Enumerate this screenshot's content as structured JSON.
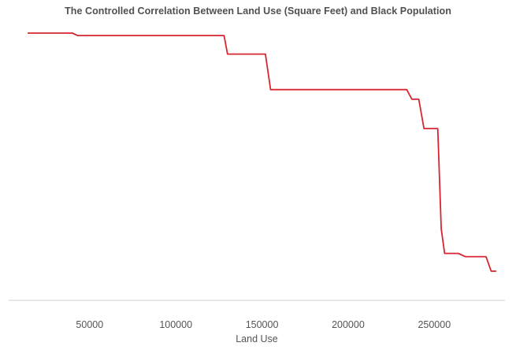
{
  "chart_data": {
    "type": "line",
    "title": "The Controlled Correlation Between Land Use (Square Feet) and Black Population",
    "xlabel": "Land Use",
    "ylabel": "",
    "x_ticks": [
      50000,
      100000,
      150000,
      200000,
      250000
    ],
    "xlim": [
      3000,
      291000
    ],
    "ylim": [
      0,
      1
    ],
    "y_axis_shown": false,
    "grid": false,
    "legend": "none",
    "line_color": "#d7262f",
    "axis_color": "#cccccc",
    "series": [
      {
        "x": [
          14000,
          40000,
          43000,
          128000,
          130000,
          152000,
          155000,
          234000,
          237000,
          241000,
          244000,
          252000,
          254000,
          256000,
          264000,
          268000,
          280000,
          283000,
          286000
        ],
        "y": [
          1.0,
          1.0,
          0.991,
          0.991,
          0.922,
          0.922,
          0.79,
          0.79,
          0.754,
          0.754,
          0.645,
          0.645,
          0.272,
          0.181,
          0.181,
          0.169,
          0.169,
          0.115,
          0.115
        ]
      }
    ]
  }
}
